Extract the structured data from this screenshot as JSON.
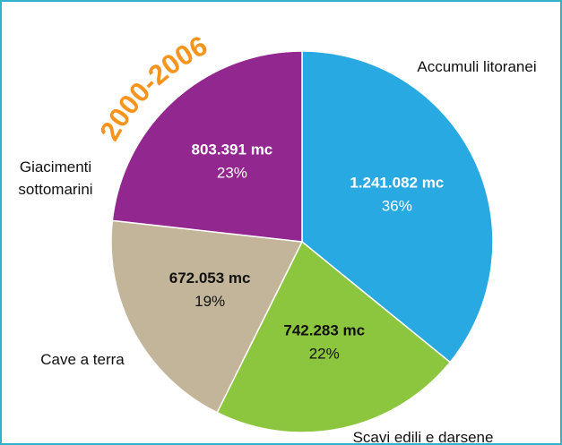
{
  "chart_data": {
    "type": "pie",
    "title": "2000-2006",
    "categories": [
      "Accumuli litoranei",
      "Scavi edili e darsene",
      "Cave a terra",
      "Giacimenti sottomarini"
    ],
    "values": [
      1241082,
      742283,
      672053,
      803391
    ],
    "value_labels": [
      "1.241.082 mc",
      "742.283 mc",
      "672.053 mc",
      "803.391 mc"
    ],
    "percentages": [
      36,
      22,
      19,
      23
    ],
    "percentage_labels": [
      "36%",
      "22%",
      "19%",
      "23%"
    ],
    "colors": [
      "#29a9e1",
      "#8cc63f",
      "#c3b59a",
      "#922790"
    ],
    "label_colors": [
      "#ffffff",
      "#111111",
      "#111111",
      "#ffffff"
    ]
  }
}
